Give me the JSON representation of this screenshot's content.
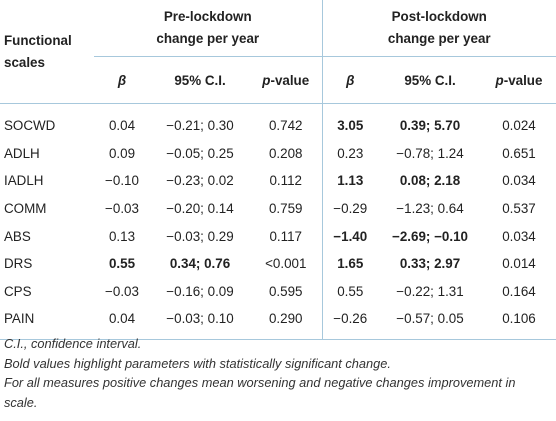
{
  "header": {
    "col_scales": [
      "Functional",
      "scales"
    ],
    "pre_group": [
      "Pre-lockdown",
      "change per year"
    ],
    "post_group": [
      "Post-lockdown",
      "change per year"
    ],
    "sub": {
      "beta": "β",
      "ci": "95% C.I.",
      "p_italic": "p",
      "p_rest": "-value"
    }
  },
  "rows": [
    {
      "name": "SOCWD",
      "pre_b": "0.04",
      "pre_ci": "−0.21; 0.30",
      "pre_p": "0.742",
      "post_b": "3.05",
      "post_ci": "0.39; 5.70",
      "post_p": "0.024",
      "pre_bold": false,
      "post_bold": true
    },
    {
      "name": "ADLH",
      "pre_b": "0.09",
      "pre_ci": "−0.05; 0.25",
      "pre_p": "0.208",
      "post_b": "0.23",
      "post_ci": "−0.78; 1.24",
      "post_p": "0.651",
      "pre_bold": false,
      "post_bold": false
    },
    {
      "name": "IADLH",
      "pre_b": "−0.10",
      "pre_ci": "−0.23; 0.02",
      "pre_p": "0.112",
      "post_b": "1.13",
      "post_ci": "0.08; 2.18",
      "post_p": "0.034",
      "pre_bold": false,
      "post_bold": true
    },
    {
      "name": "COMM",
      "pre_b": "−0.03",
      "pre_ci": "−0.20; 0.14",
      "pre_p": "0.759",
      "post_b": "−0.29",
      "post_ci": "−1.23; 0.64",
      "post_p": "0.537",
      "pre_bold": false,
      "post_bold": false
    },
    {
      "name": "ABS",
      "pre_b": "0.13",
      "pre_ci": "−0.03; 0.29",
      "pre_p": "0.117",
      "post_b": "−1.40",
      "post_ci": "−2.69; −0.10",
      "post_p": "0.034",
      "pre_bold": false,
      "post_bold": true
    },
    {
      "name": "DRS",
      "pre_b": "0.55",
      "pre_ci": "0.34; 0.76",
      "pre_p": "<0.001",
      "post_b": "1.65",
      "post_ci": "0.33; 2.97",
      "post_p": "0.014",
      "pre_bold": true,
      "post_bold": true
    },
    {
      "name": "CPS",
      "pre_b": "−0.03",
      "pre_ci": "−0.16; 0.09",
      "pre_p": "0.595",
      "post_b": "0.55",
      "post_ci": "−0.22; 1.31",
      "post_p": "0.164",
      "pre_bold": false,
      "post_bold": false
    },
    {
      "name": "PAIN",
      "pre_b": "0.04",
      "pre_ci": "−0.03; 0.10",
      "pre_p": "0.290",
      "post_b": "−0.26",
      "post_ci": "−0.57; 0.05",
      "post_p": "0.106",
      "pre_bold": false,
      "post_bold": false
    }
  ],
  "notes": [
    "C.I., confidence interval.",
    "Bold values highlight parameters with statistically significant change.",
    "For all measures positive changes mean worsening and negative changes improvement in scale."
  ]
}
